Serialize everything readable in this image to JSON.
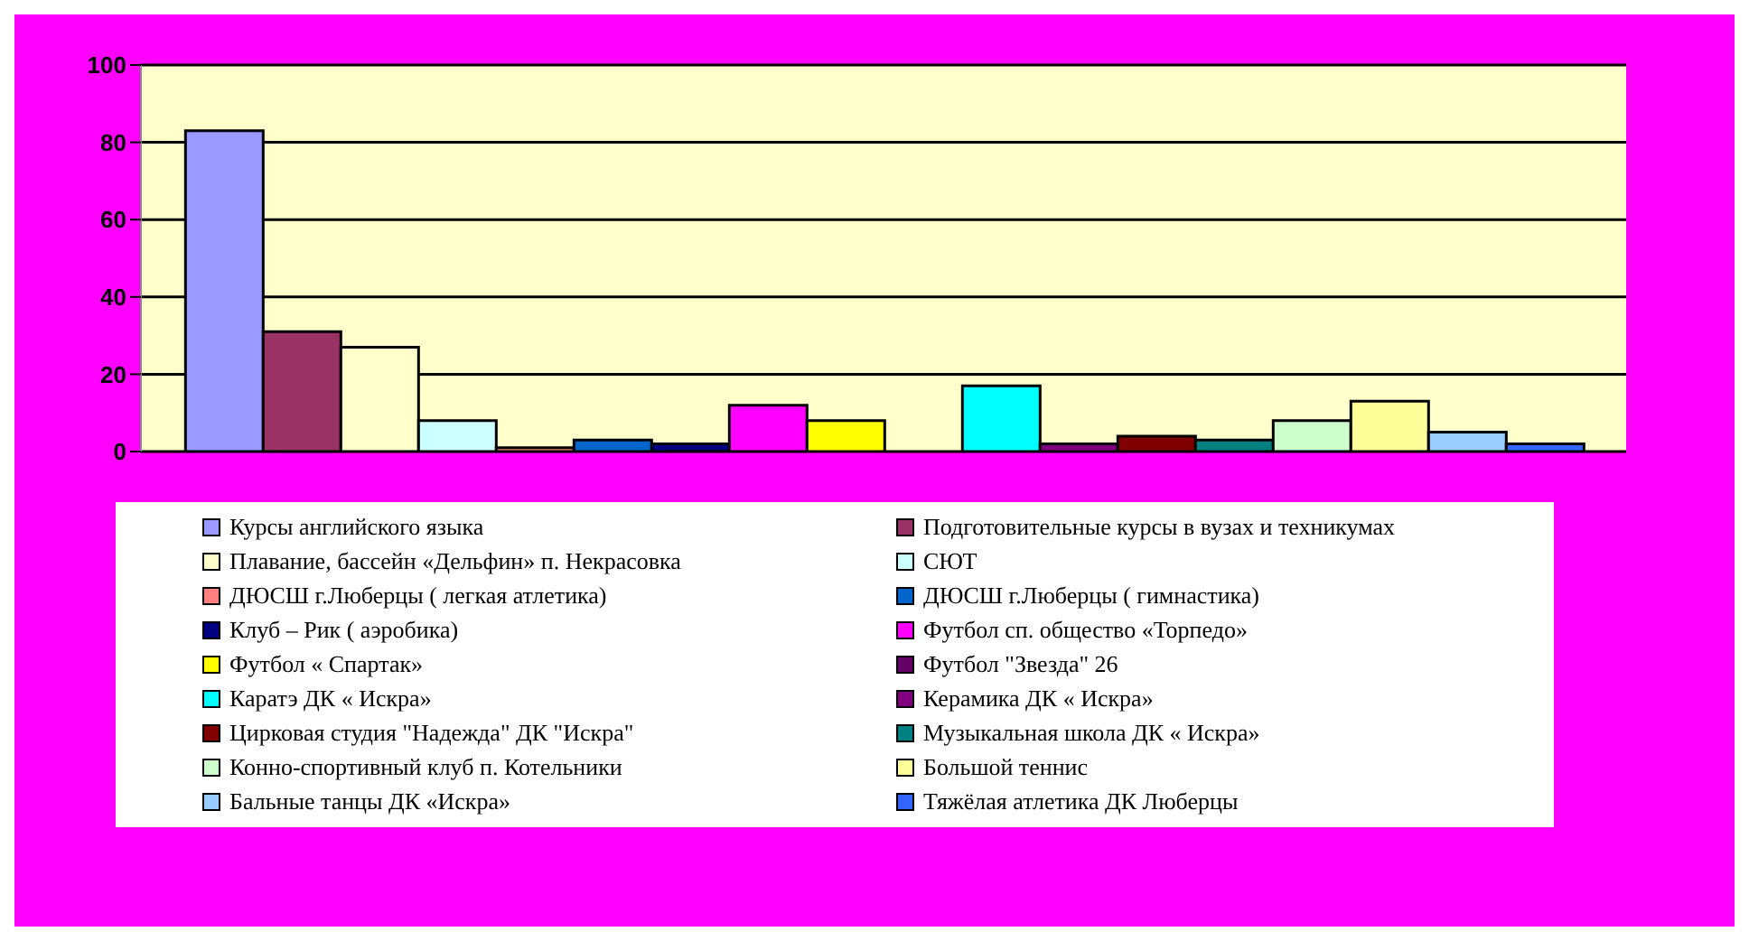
{
  "chart_data": {
    "type": "bar",
    "categories": [
      null
    ],
    "ylim": [
      0,
      100
    ],
    "yticks": [
      0,
      20,
      40,
      60,
      80,
      100
    ],
    "grid": "y",
    "legend": "bottom",
    "series": [
      {
        "name": "Курсы английского языка",
        "color": "#9999ff",
        "values": [
          83
        ]
      },
      {
        "name": "Подготовительные курсы в вузах и техникумах",
        "color": "#993366",
        "values": [
          31
        ]
      },
      {
        "name": "Плавание, бассейн «Дельфин» п. Некрасовка",
        "color": "#ffffcc",
        "values": [
          27
        ]
      },
      {
        "name": "СЮТ",
        "color": "#ccffff",
        "values": [
          8
        ]
      },
      {
        "name": "ДЮСШ г.Люберцы ( легкая атлетика)",
        "color": "#ff8080",
        "values": [
          1
        ]
      },
      {
        "name": "ДЮСШ г.Люберцы ( гимнастика)",
        "color": "#0066cc",
        "values": [
          3
        ]
      },
      {
        "name": "Клуб – Рик ( аэробика)",
        "color": "#000080",
        "values": [
          2
        ]
      },
      {
        "name": "Футбол  сп. общество «Торпедо»",
        "color": "#ff00ff",
        "values": [
          12
        ]
      },
      {
        "name": "Футбол « Спартак»",
        "color": "#ffff00",
        "values": [
          8
        ]
      },
      {
        "name": "Футбол \"Звезда\" 26",
        "color": "#660066",
        "values": [
          0
        ]
      },
      {
        "name": "Каратэ ДК « Искра»",
        "color": "#00ffff",
        "values": [
          17
        ]
      },
      {
        "name": "Керамика ДК « Искра»",
        "color": "#800080",
        "values": [
          2
        ]
      },
      {
        "name": "Цирковая студия \"Надежда\" ДК \"Искра\"",
        "color": "#800000",
        "values": [
          4
        ]
      },
      {
        "name": "Музыкальная школа ДК « Искра»",
        "color": "#008080",
        "values": [
          3
        ]
      },
      {
        "name": "Конно-спортивный клуб п. Котельники",
        "color": "#ccffcc",
        "values": [
          8
        ]
      },
      {
        "name": "Большой теннис",
        "color": "#ffff99",
        "values": [
          13
        ]
      },
      {
        "name": "Бальные танцы ДК «Искра»",
        "color": "#99ccff",
        "values": [
          5
        ]
      },
      {
        "name": "Тяжёлая атлетика ДК Люберцы",
        "color": "#3366ff",
        "values": [
          2
        ]
      }
    ]
  }
}
